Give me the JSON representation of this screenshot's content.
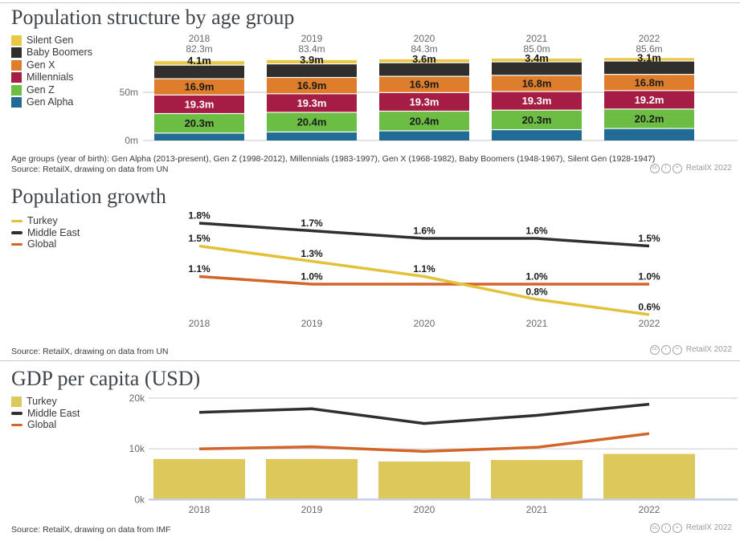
{
  "attribution": {
    "label": "RetailX 2022",
    "icons": [
      "cc",
      "by",
      "nd"
    ]
  },
  "sections": [
    {
      "title": "Population structure by age group",
      "footnote": "Age groups (year of birth): Gen Alpha (2013-present), Gen Z (1998-2012), Millennials (1983-1997), Gen X (1968-1982), Baby Boomers (1948-1967), Silent Gen (1928-1947)",
      "source": "Source: RetailX, drawing on data from UN"
    },
    {
      "title": "Population growth",
      "source": "Source: RetailX, drawing on data from UN"
    },
    {
      "title": "GDP per capita (USD)",
      "source": "Source: RetailX, drawing on data from IMF"
    }
  ],
  "chart_data": [
    {
      "type": "bar",
      "stacked": true,
      "title": "Population structure by age group",
      "unit": "millions of people",
      "categories": [
        "2018",
        "2019",
        "2020",
        "2021",
        "2022"
      ],
      "totals": [
        "82.3m",
        "83.4m",
        "84.3m",
        "85.0m",
        "85.6m"
      ],
      "yticks": [
        {
          "label": "50m",
          "value": 50
        },
        {
          "label": "0m",
          "value": 0
        }
      ],
      "ylim": [
        0,
        90
      ],
      "series": [
        {
          "name": "Gen Alpha",
          "color": "#216b95",
          "values": [
            7.6,
            8.8,
            10.0,
            11.2,
            12.4
          ],
          "labels": [
            null,
            null,
            null,
            null,
            null
          ],
          "label_color": "#ffffff"
        },
        {
          "name": "Gen Z",
          "color": "#6cbd44",
          "values": [
            20.3,
            20.4,
            20.4,
            20.3,
            20.2
          ],
          "labels": [
            "20.3m",
            "20.4m",
            "20.4m",
            "20.3m",
            "20.2m"
          ],
          "label_color": "#1b1b1b"
        },
        {
          "name": "Millennials",
          "color": "#a51d45",
          "values": [
            19.3,
            19.3,
            19.3,
            19.3,
            19.2
          ],
          "labels": [
            "19.3m",
            "19.3m",
            "19.3m",
            "19.3m",
            "19.2m"
          ],
          "label_color": "#ffffff"
        },
        {
          "name": "Gen X",
          "color": "#de7e2d",
          "values": [
            16.9,
            16.9,
            16.9,
            16.8,
            16.8
          ],
          "labels": [
            "16.9m",
            "16.9m",
            "16.9m",
            "16.8m",
            "16.8m"
          ],
          "label_color": "#1b1b1b"
        },
        {
          "name": "Baby Boomers",
          "color": "#312f2d",
          "values": [
            14.1,
            14.1,
            14.1,
            14.0,
            13.9
          ],
          "labels": [
            null,
            null,
            null,
            null,
            null
          ],
          "label_color": "#312f2d"
        },
        {
          "name": "Silent Gen",
          "color": "#e9c845",
          "values": [
            4.1,
            3.9,
            3.6,
            3.4,
            3.1
          ],
          "labels": [
            "4.1m",
            "3.9m",
            "3.6m",
            "3.4m",
            "3.1m"
          ],
          "label_color": "#1b1b1b",
          "label_outside": true
        }
      ]
    },
    {
      "type": "line",
      "title": "Population growth",
      "unit": "%",
      "x": [
        "2018",
        "2019",
        "2020",
        "2021",
        "2022"
      ],
      "ylim": [
        0.5,
        1.9
      ],
      "grid": false,
      "series": [
        {
          "name": "Turkey",
          "color": "#e2c23d",
          "values": [
            1.5,
            1.3,
            1.1,
            0.8,
            0.6
          ],
          "labels": [
            "1.5%",
            "1.3%",
            "1.1%",
            "0.8%",
            "0.6%"
          ]
        },
        {
          "name": "Middle East",
          "color": "#312f2d",
          "values": [
            1.8,
            1.7,
            1.6,
            1.6,
            1.5
          ],
          "labels": [
            "1.8%",
            "1.7%",
            "1.6%",
            "1.6%",
            "1.5%"
          ]
        },
        {
          "name": "Global",
          "color": "#d2652a",
          "values": [
            1.1,
            1.0,
            1.0,
            1.0,
            1.0
          ],
          "labels": [
            "1.1%",
            "1.0%",
            null,
            "1.0%",
            "1.0%"
          ]
        }
      ]
    },
    {
      "type": "combo",
      "title": "GDP per capita (USD)",
      "unit": "USD thousands",
      "x": [
        "2018",
        "2019",
        "2020",
        "2021",
        "2022"
      ],
      "yticks": [
        {
          "label": "20k",
          "value": 20
        },
        {
          "label": "10k",
          "value": 10
        },
        {
          "label": "0k",
          "value": 0
        }
      ],
      "ylim": [
        0,
        20
      ],
      "bar_series": {
        "name": "Turkey",
        "color": "#ddc85c",
        "values": [
          8.0,
          8.0,
          7.5,
          7.8,
          9.0
        ]
      },
      "line_series": [
        {
          "name": "Middle East",
          "color": "#312f2d",
          "values": [
            17.2,
            17.9,
            15.0,
            16.6,
            18.8
          ]
        },
        {
          "name": "Global",
          "color": "#d2652a",
          "values": [
            10.0,
            10.4,
            9.5,
            10.3,
            13.0
          ]
        }
      ]
    }
  ]
}
